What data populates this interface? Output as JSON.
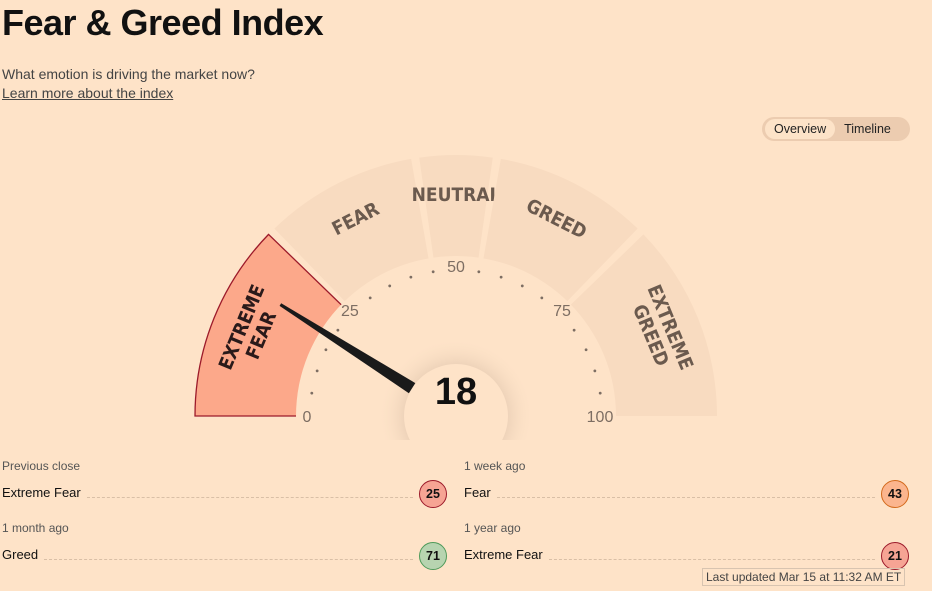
{
  "header": {
    "title": "Fear & Greed Index",
    "subtitle": "What emotion is driving the market now?",
    "learn_more": "Learn more about the index"
  },
  "tabs": [
    {
      "label": "Overview",
      "active": true
    },
    {
      "label": "Timeline",
      "active": false
    }
  ],
  "gauge": {
    "value": 18,
    "current_zone": "Extreme Fear",
    "segments": [
      {
        "label": [
          "EXTREME",
          "FEAR"
        ],
        "from": 0,
        "to": 25
      },
      {
        "label": [
          "FEAR"
        ],
        "from": 25,
        "to": 45
      },
      {
        "label": [
          "NEUTRAL"
        ],
        "from": 45,
        "to": 55
      },
      {
        "label": [
          "GREED"
        ],
        "from": 55,
        "to": 75
      },
      {
        "label": [
          "EXTREME",
          "GREED"
        ],
        "from": 75,
        "to": 100
      }
    ],
    "tick_labels": [
      "0",
      "25",
      "50",
      "75",
      "100"
    ]
  },
  "stats": [
    {
      "period": "Previous close",
      "rating": "Extreme Fear",
      "value": "25"
    },
    {
      "period": "1 week ago",
      "rating": "Fear",
      "value": "43"
    },
    {
      "period": "1 month ago",
      "rating": "Greed",
      "value": "71"
    },
    {
      "period": "1 year ago",
      "rating": "Extreme Fear",
      "value": "21"
    }
  ],
  "colors": {
    "background": "#fee3c8",
    "band": "#f8dbc0",
    "active_fill": "#fca88a",
    "active_stroke": "#9c1a2a",
    "extreme_fear": "#f6a494",
    "fear": "#fbb58e",
    "greed": "#b7d4b0"
  },
  "last_updated": "Last updated Mar 15 at 11:32 AM ET"
}
